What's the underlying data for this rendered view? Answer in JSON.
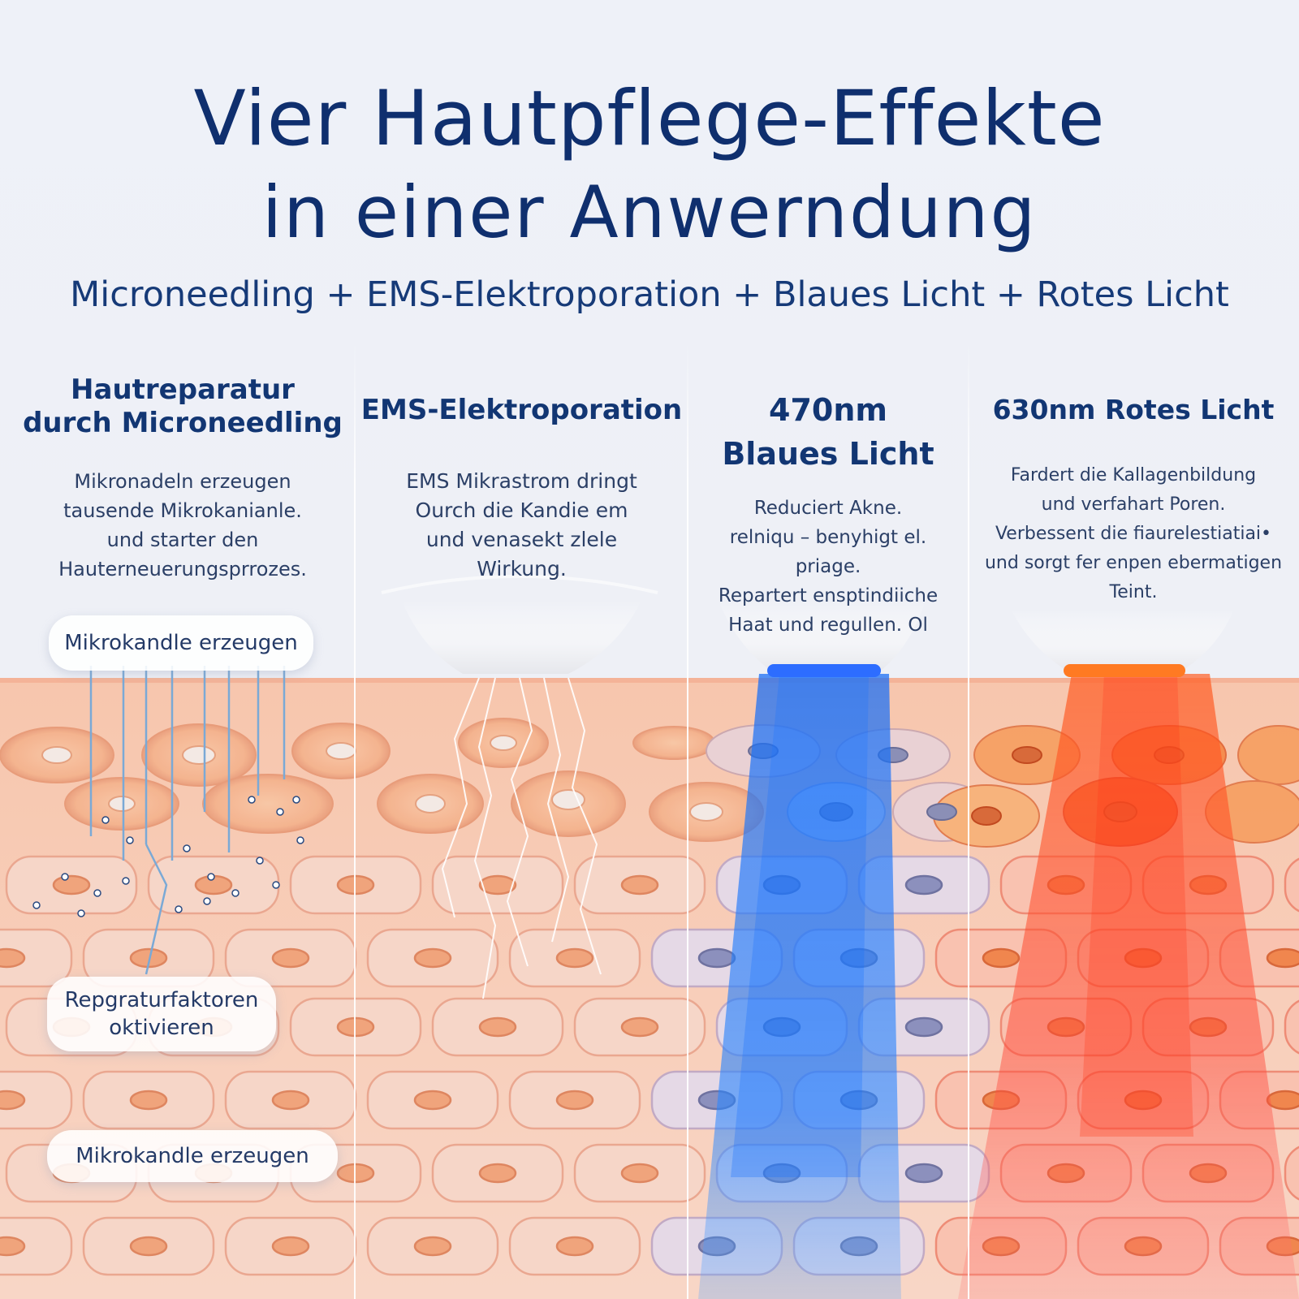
{
  "header": {
    "title_line1": "Vier Hautpflege-Effekte",
    "title_line2": "in einer Anwerndung",
    "subtitle": "Microneedling + EMS-Elektroporation + Blaues Licht + Rotes Licht"
  },
  "columns": [
    {
      "heading": [
        "Hautreparatur",
        "durch Microneedling"
      ],
      "text": [
        "Mikronadeln erzeugen",
        "tausende Mikrokanianle.",
        "und starter den",
        "Hauterneuerungsprrozes."
      ]
    },
    {
      "heading": [
        "EMS-Elektroporation"
      ],
      "text": [
        "EMS Mikrastrom dringt",
        "Ourch die Kandie em",
        "und venasekt zlele",
        "Wirkung."
      ]
    },
    {
      "heading": [
        "470nm",
        "Blaues Licht"
      ],
      "text": [
        "Reduciert Akne.",
        "relniqu – benyhigt el.",
        "priage.",
        "Repartert ensptindiiche",
        "Haat und regullen. Ol"
      ]
    },
    {
      "heading": [
        "630nm Rotes Licht"
      ],
      "text": [
        "Fardert die Kallagenbildung",
        "und verfahart Poren.",
        "Verbessent die fiaurelestiatiai•",
        "und sorgt fer enpen ebermatigen",
        "Teint."
      ]
    }
  ],
  "labels": {
    "pill1": "Mikrokandle erzeugen",
    "pill2_line1": "Repgraturfaktoren",
    "pill2_line2": "oktivieren",
    "pill3": "Mikrokandle erzeugen"
  },
  "colors": {
    "title": "#0f2f6e",
    "skin": "#f6c9b4",
    "blue_light": "#1f7ff0",
    "red_light": "#ff4a2a"
  }
}
